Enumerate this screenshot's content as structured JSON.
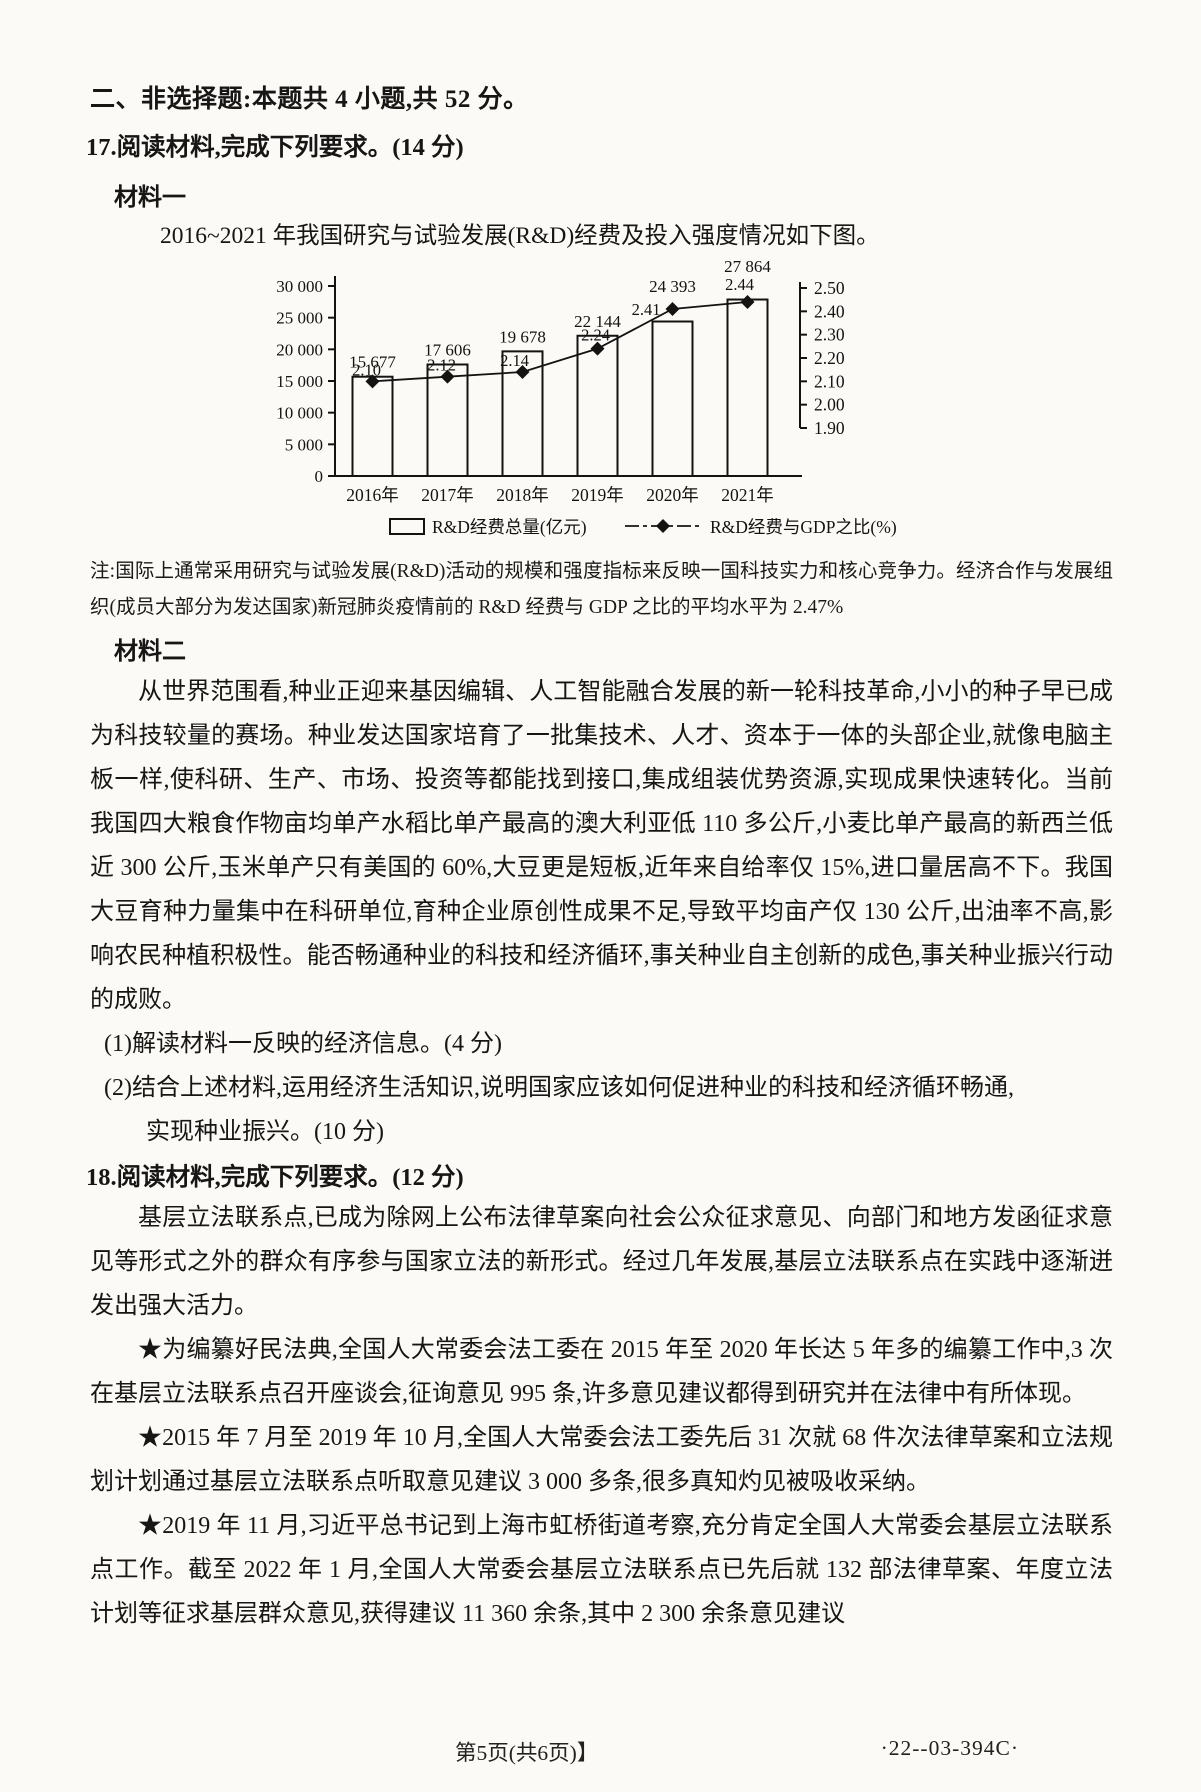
{
  "document": {
    "section_header": "二、非选择题:本题共 4 小题,共 52 分。",
    "q17": {
      "title": "17.阅读材料,完成下列要求。(14 分)",
      "material1_label": "材料一",
      "chart_caption": "2016~2021 年我国研究与试验发展(R&D)经费及投入强度情况如下图。",
      "chart_note": "注:国际上通常采用研究与试验发展(R&D)活动的规模和强度指标来反映一国科技实力和核心竞争力。经济合作与发展组织(成员大部分为发达国家)新冠肺炎疫情前的 R&D 经费与 GDP 之比的平均水平为 2.47%",
      "material2_label": "材料二",
      "material2_text": "从世界范围看,种业正迎来基因编辑、人工智能融合发展的新一轮科技革命,小小的种子早已成为科技较量的赛场。种业发达国家培育了一批集技术、人才、资本于一体的头部企业,就像电脑主板一样,使科研、生产、市场、投资等都能找到接口,集成组装优势资源,实现成果快速转化。当前我国四大粮食作物亩均单产水稻比单产最高的澳大利亚低 110 多公斤,小麦比单产最高的新西兰低近 300 公斤,玉米单产只有美国的 60%,大豆更是短板,近年来自给率仅 15%,进口量居高不下。我国大豆育种力量集中在科研单位,育种企业原创性成果不足,导致平均亩产仅 130 公斤,出油率不高,影响农民种植积极性。能否畅通种业的科技和经济循环,事关种业自主创新的成色,事关种业振兴行动的成败。",
      "part1": "(1)解读材料一反映的经济信息。(4 分)",
      "part2_line1": "(2)结合上述材料,运用经济生活知识,说明国家应该如何促进种业的科技和经济循环畅通,",
      "part2_line2": "实现种业振兴。(10 分)"
    },
    "q18": {
      "title": "18.阅读材料,完成下列要求。(12 分)",
      "intro": "基层立法联系点,已成为除网上公布法律草案向社会公众征求意见、向部门和地方发函征求意见等形式之外的群众有序参与国家立法的新形式。经过几年发展,基层立法联系点在实践中逐渐迸发出强大活力。",
      "bullet1": "★为编纂好民法典,全国人大常委会法工委在 2015 年至 2020 年长达 5 年多的编纂工作中,3 次在基层立法联系点召开座谈会,征询意见 995 条,许多意见建议都得到研究并在法律中有所体现。",
      "bullet2": "★2015 年 7 月至 2019 年 10 月,全国人大常委会法工委先后 31 次就 68 件次法律草案和立法规划计划通过基层立法联系点听取意见建议 3 000 多条,很多真知灼见被吸收采纳。",
      "bullet3": "★2019 年 11 月,习近平总书记到上海市虹桥街道考察,充分肯定全国人大常委会基层立法联系点工作。截至 2022 年 1 月,全国人大常委会基层立法联系点已先后就 132 部法律草案、年度立法计划等征求基层群众意见,获得建议 11 360 余条,其中 2 300 余条意见建议"
    },
    "footer": {
      "page_info": "第5页(共6页)】",
      "paper_code": "·22--03-394C·"
    }
  },
  "chart_data": {
    "type": "bar",
    "subtype": "bar+line dual-axis",
    "title": "2016~2021年我国研究与试验发展(R&D)经费及投入强度情况",
    "categories": [
      "2016年",
      "2017年",
      "2018年",
      "2019年",
      "2020年",
      "2021年"
    ],
    "series": [
      {
        "name": "R&D经费总量(亿元)",
        "type": "bar",
        "axis": "left",
        "values": [
          15677,
          17606,
          19678,
          22144,
          24393,
          27864
        ],
        "value_labels": [
          "15 677",
          "17 606",
          "19 678",
          "22 144",
          "24 393",
          "27 864"
        ]
      },
      {
        "name": "R&D经费与GDP之比(%)",
        "type": "line",
        "axis": "right",
        "values": [
          2.1,
          2.12,
          2.14,
          2.24,
          2.41,
          2.44
        ],
        "value_labels": [
          "2.10",
          "2.12",
          "2.14",
          "2.24",
          "2.41",
          "2.44"
        ]
      }
    ],
    "left_axis": {
      "min": 0,
      "max": 30000,
      "step": 5000,
      "tick_labels": [
        "30 000",
        "25 000",
        "20 000",
        "15 000",
        "10 000",
        "5 000",
        "0"
      ]
    },
    "right_axis": {
      "min": 1.9,
      "max": 2.5,
      "step": 0.1,
      "tick_labels": [
        "2.50",
        "2.40",
        "2.30",
        "2.20",
        "2.10",
        "2.00",
        "1.90"
      ]
    },
    "legend": [
      {
        "label": "R&D经费总量(亿元)",
        "marker": "bar-outline"
      },
      {
        "label": "R&D经费与GDP之比(%)",
        "marker": "diamond-line"
      }
    ],
    "grid": false,
    "legend_position": "bottom"
  }
}
